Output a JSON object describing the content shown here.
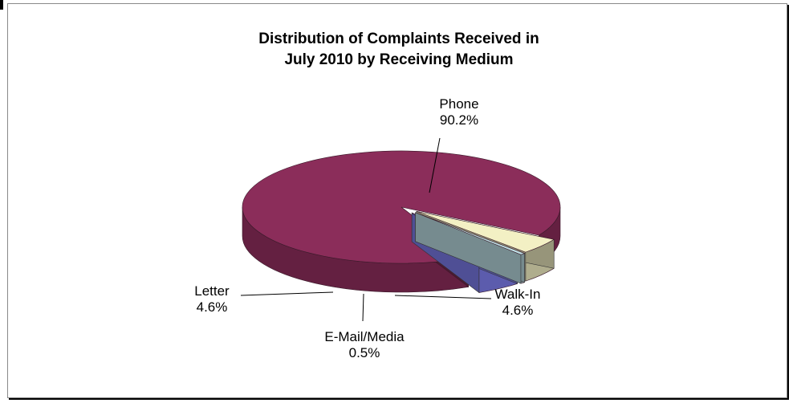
{
  "chart_data": {
    "type": "pie",
    "title_lines": [
      "Distribution of Complaints Received in",
      "July 2010 by Receiving Medium"
    ],
    "slices": [
      {
        "name": "Phone",
        "value": 90.2,
        "label": "90.2%",
        "color": "#8b2d5a"
      },
      {
        "name": "Walk-In",
        "value": 4.6,
        "label": "4.6%",
        "color": "#f3f0c4"
      },
      {
        "name": "E-Mail/Media",
        "value": 0.5,
        "label": "0.5%",
        "color": "#bfe0e6"
      },
      {
        "name": "Letter",
        "value": 4.6,
        "label": "4.6%",
        "color": "#8080f0"
      }
    ],
    "three_d": true,
    "legend": "none"
  }
}
